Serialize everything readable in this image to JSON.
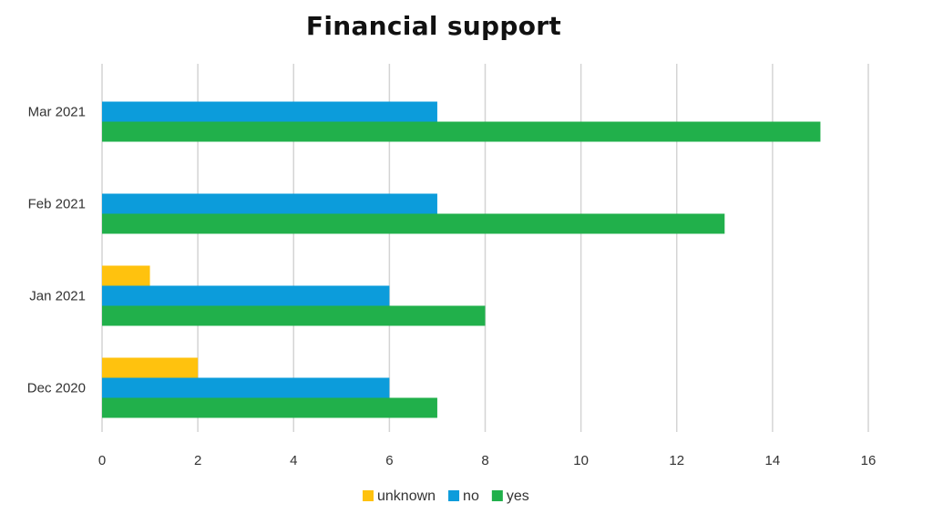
{
  "chart_data": {
    "type": "bar",
    "orientation": "horizontal",
    "title": "Financial support",
    "xlabel": "",
    "ylabel": "",
    "categories": [
      "Dec 2020",
      "Jan 2021",
      "Feb 2021",
      "Mar 2021"
    ],
    "series": [
      {
        "name": "unknown",
        "color": "#FFC20E",
        "values": [
          2,
          1,
          0,
          0
        ]
      },
      {
        "name": "no",
        "color": "#0C9CDB",
        "values": [
          6,
          6,
          7,
          7
        ]
      },
      {
        "name": "yes",
        "color": "#21B04B",
        "values": [
          7,
          8,
          13,
          15
        ]
      }
    ],
    "xlim": [
      0,
      16
    ],
    "xticks": [
      "0",
      "2",
      "4",
      "6",
      "8",
      "10",
      "12",
      "14",
      "16"
    ],
    "grid": true,
    "legend_position": "bottom-center"
  }
}
